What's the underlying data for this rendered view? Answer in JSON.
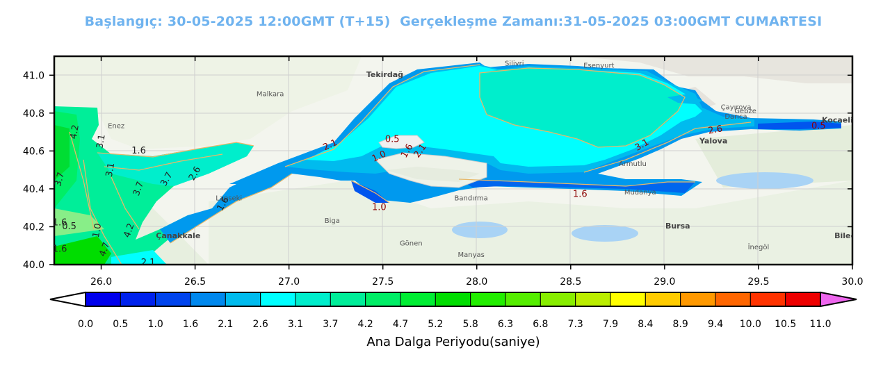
{
  "title": "Başlangıç: 30-05-2025 12:00GMT (T+15)  Gerçekleşme Zamanı:31-05-2025 03:00GMT CUMARTESI",
  "colorbar_label": "Ana Dalga Periyodu(saniye)",
  "colorbar_ticks": [
    "0.0",
    "0.5",
    "1.0",
    "1.6",
    "2.1",
    "2.6",
    "3.1",
    "3.7",
    "4.2",
    "4.7",
    "5.2",
    "5.8",
    "6.3",
    "6.8",
    "7.3",
    "7.9",
    "8.4",
    "8.9",
    "9.4",
    "10.0",
    "10.5",
    "11.0"
  ],
  "colorbar_colors": [
    "#0000ee",
    "#0022ee",
    "#0044ee",
    "#0088ee",
    "#00bbee",
    "#00ffff",
    "#00eecc",
    "#00ee99",
    "#00ee66",
    "#00ee33",
    "#00dd00",
    "#22ee00",
    "#55ee00",
    "#88ee00",
    "#bbee00",
    "#ffff00",
    "#ffcc00",
    "#ff9900",
    "#ff6600",
    "#ff3300",
    "#ee0000"
  ],
  "colorbar_over_color": "#ee66ee",
  "axis": {
    "x_ticks": [
      "26.0",
      "26.5",
      "27.0",
      "27.5",
      "28.0",
      "28.5",
      "29.0",
      "29.5",
      "30.0"
    ],
    "y_ticks": [
      "40.0",
      "40.2",
      "40.4",
      "40.6",
      "40.8",
      "41.0"
    ],
    "xlim": [
      25.75,
      30.0
    ],
    "ylim": [
      40.0,
      41.1
    ]
  },
  "contour_labels": [
    {
      "text": "4.2",
      "lon": 25.86,
      "lat": 40.7,
      "rot": -80
    },
    {
      "text": "3.1",
      "lon": 26.0,
      "lat": 40.65,
      "rot": -80
    },
    {
      "text": "1.6",
      "lon": 26.2,
      "lat": 40.6,
      "rot": 0
    },
    {
      "text": "3.7",
      "lon": 25.78,
      "lat": 40.45,
      "rot": -75
    },
    {
      "text": "3.1",
      "lon": 26.05,
      "lat": 40.5,
      "rot": -80
    },
    {
      "text": "3.7",
      "lon": 26.2,
      "lat": 40.4,
      "rot": -70
    },
    {
      "text": "3.7",
      "lon": 26.35,
      "lat": 40.45,
      "rot": -60
    },
    {
      "text": "2.6",
      "lon": 26.5,
      "lat": 40.48,
      "rot": -60
    },
    {
      "text": "1.6",
      "lon": 26.65,
      "lat": 40.32,
      "rot": -60
    },
    {
      "text": "1.6",
      "lon": 25.78,
      "lat": 40.22,
      "rot": 0
    },
    {
      "text": "0.5",
      "lon": 25.83,
      "lat": 40.2,
      "rot": 0
    },
    {
      "text": "1.0",
      "lon": 25.98,
      "lat": 40.18,
      "rot": -80
    },
    {
      "text": "4.2",
      "lon": 26.15,
      "lat": 40.18,
      "rot": -70
    },
    {
      "text": "4.7",
      "lon": 26.02,
      "lat": 40.08,
      "rot": -70
    },
    {
      "text": "1.6",
      "lon": 25.78,
      "lat": 40.08,
      "rot": 0
    },
    {
      "text": "2.1",
      "lon": 26.25,
      "lat": 40.01,
      "rot": 0
    },
    {
      "text": "2.1",
      "lon": 27.22,
      "lat": 40.63,
      "rot": -25
    },
    {
      "text": "0.5",
      "lon": 27.55,
      "lat": 40.66,
      "rot": 0
    },
    {
      "text": "1.0",
      "lon": 27.48,
      "lat": 40.57,
      "rot": -25
    },
    {
      "text": "1.6",
      "lon": 27.63,
      "lat": 40.6,
      "rot": -60
    },
    {
      "text": "2.1",
      "lon": 27.7,
      "lat": 40.6,
      "rot": -55
    },
    {
      "text": "1.0",
      "lon": 27.48,
      "lat": 40.3,
      "rot": 0
    },
    {
      "text": "1.6",
      "lon": 28.55,
      "lat": 40.37,
      "rot": 0
    },
    {
      "text": "3.1",
      "lon": 28.88,
      "lat": 40.63,
      "rot": -30
    },
    {
      "text": "2.6",
      "lon": 29.27,
      "lat": 40.71,
      "rot": -10
    },
    {
      "text": "0.5",
      "lon": 29.82,
      "lat": 40.73,
      "rot": 0
    }
  ],
  "place_names": [
    {
      "text": "Tekirdağ",
      "lon": 27.51,
      "lat": 40.99,
      "bold": true
    },
    {
      "text": "Çanakkale",
      "lon": 26.41,
      "lat": 40.14,
      "bold": true
    },
    {
      "text": "Yalova",
      "lon": 29.26,
      "lat": 40.64,
      "bold": true
    },
    {
      "text": "Bursa",
      "lon": 29.07,
      "lat": 40.19,
      "bold": true
    },
    {
      "text": "Kocaeli",
      "lon": 29.92,
      "lat": 40.75,
      "bold": true
    },
    {
      "text": "Bandırma",
      "lon": 27.97,
      "lat": 40.34,
      "bold": false
    },
    {
      "text": "Malkara",
      "lon": 26.9,
      "lat": 40.89,
      "bold": false
    },
    {
      "text": "Gönen",
      "lon": 27.65,
      "lat": 40.1,
      "bold": false
    },
    {
      "text": "Manyas",
      "lon": 27.97,
      "lat": 40.04,
      "bold": false
    },
    {
      "text": "Biga",
      "lon": 27.23,
      "lat": 40.22,
      "bold": false
    },
    {
      "text": "Enez",
      "lon": 26.08,
      "lat": 40.72,
      "bold": false
    },
    {
      "text": "Çayırova",
      "lon": 29.38,
      "lat": 40.82,
      "bold": false
    },
    {
      "text": "Darıca",
      "lon": 29.38,
      "lat": 40.77,
      "bold": false
    },
    {
      "text": "Silivri",
      "lon": 28.2,
      "lat": 41.05,
      "bold": false
    },
    {
      "text": "Esenyurt",
      "lon": 28.65,
      "lat": 41.04,
      "bold": false
    },
    {
      "text": "Gebze",
      "lon": 29.43,
      "lat": 40.8,
      "bold": false
    },
    {
      "text": "İnegöl",
      "lon": 29.5,
      "lat": 40.08,
      "bold": false
    },
    {
      "text": "Mudanya",
      "lon": 28.87,
      "lat": 40.37,
      "bold": false
    },
    {
      "text": "Armutlu",
      "lon": 28.83,
      "lat": 40.52,
      "bold": false
    },
    {
      "text": "Bilecik",
      "lon": 29.98,
      "lat": 40.14,
      "bold": true
    },
    {
      "text": "Lapseki",
      "lon": 26.68,
      "lat": 40.34,
      "bold": false
    }
  ]
}
